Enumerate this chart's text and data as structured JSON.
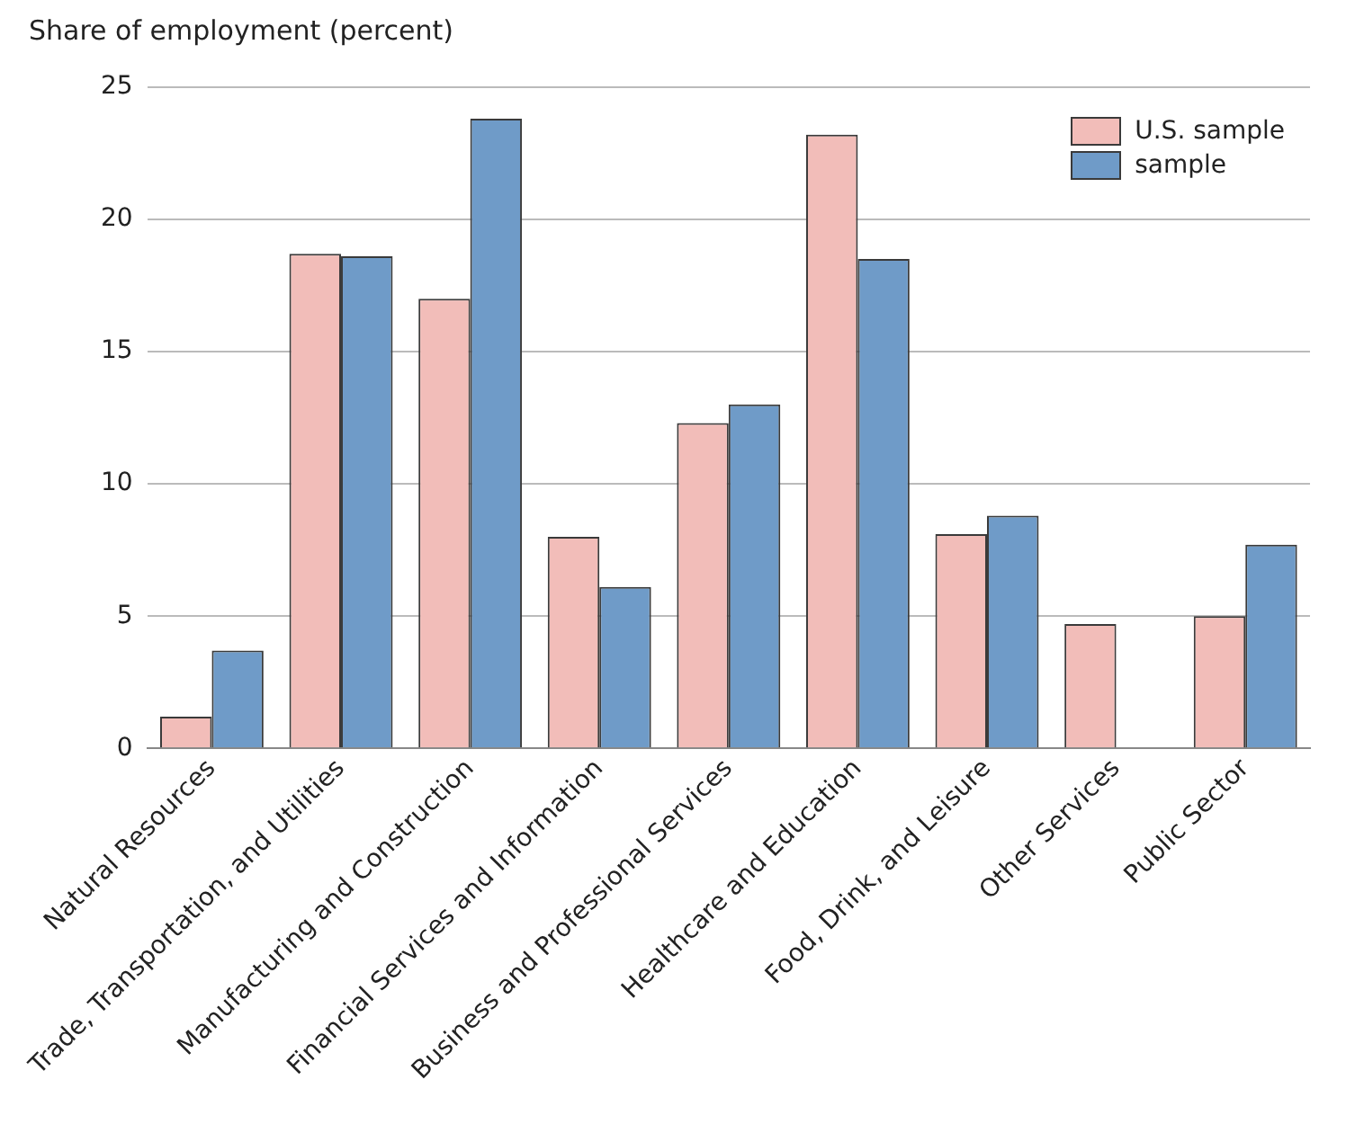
{
  "chart_data": {
    "type": "bar",
    "ylabel": "Share of employment (percent)",
    "categories": [
      "Natural Resources",
      "Trade, Transportation, and Utilities",
      "Manufacturing and Construction",
      "Financial Services and Information",
      "Business and Professional Services",
      "Healthcare and Education",
      "Food, Drink, and Leisure",
      "Other Services",
      "Public Sector"
    ],
    "series": [
      {
        "name": "U.S. sample",
        "color": "#f2bdb9",
        "values": [
          1.2,
          18.7,
          17.0,
          8.0,
          12.3,
          23.2,
          8.1,
          4.7,
          5.0
        ]
      },
      {
        "name": "sample",
        "color": "#6f9bc8",
        "values": [
          3.7,
          18.6,
          23.8,
          6.1,
          13.0,
          18.5,
          8.8,
          null,
          7.7
        ]
      }
    ],
    "ylim": [
      0,
      25
    ],
    "yticks": [
      0,
      5,
      10,
      15,
      20,
      25
    ],
    "grid": "y",
    "legend": "top right"
  }
}
